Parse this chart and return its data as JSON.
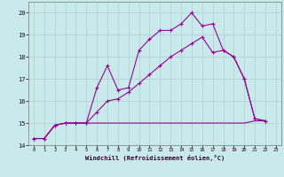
{
  "background_color": "#c8eaea",
  "grid_color": "#b0d0d0",
  "line_color": "#990099",
  "xlabel": "Windchill (Refroidissement éolien,°C)",
  "xlim": [
    -0.5,
    23.5
  ],
  "ylim": [
    14,
    20.5
  ],
  "yticks": [
    14,
    15,
    16,
    17,
    18,
    19,
    20
  ],
  "xticks": [
    0,
    1,
    2,
    3,
    4,
    5,
    6,
    7,
    8,
    9,
    10,
    11,
    12,
    13,
    14,
    15,
    16,
    17,
    18,
    19,
    20,
    21,
    22,
    23
  ],
  "line1_x": [
    0,
    1,
    2,
    3,
    4,
    5,
    6,
    7,
    8,
    9,
    10,
    11,
    12,
    13,
    14,
    15,
    16,
    17,
    18,
    19,
    20,
    21,
    22
  ],
  "line1_y": [
    14.3,
    14.3,
    14.9,
    15.0,
    15.0,
    15.0,
    16.6,
    17.6,
    16.5,
    16.6,
    18.3,
    18.8,
    19.2,
    19.2,
    19.5,
    20.0,
    19.4,
    19.5,
    18.3,
    18.0,
    17.0,
    15.2,
    15.1
  ],
  "line2_x": [
    0,
    1,
    2,
    3,
    4,
    5,
    6,
    7,
    8,
    9,
    10,
    11,
    12,
    13,
    14,
    15,
    16,
    17,
    18,
    19,
    20,
    21,
    22
  ],
  "line2_y": [
    14.3,
    14.3,
    14.9,
    15.0,
    15.0,
    15.0,
    15.0,
    15.0,
    15.0,
    15.0,
    15.0,
    15.0,
    15.0,
    15.0,
    15.0,
    15.0,
    15.0,
    15.0,
    15.0,
    15.0,
    15.0,
    15.1,
    15.1
  ],
  "line3_x": [
    0,
    1,
    2,
    3,
    4,
    5,
    6,
    7,
    8,
    9,
    10,
    11,
    12,
    13,
    14,
    15,
    16,
    17,
    18,
    19,
    20,
    21,
    22
  ],
  "line3_y": [
    14.3,
    14.3,
    14.9,
    15.0,
    15.0,
    15.0,
    15.5,
    16.0,
    16.1,
    16.4,
    16.8,
    17.2,
    17.6,
    18.0,
    18.3,
    18.6,
    18.9,
    18.2,
    18.3,
    18.0,
    17.0,
    15.2,
    15.1
  ]
}
